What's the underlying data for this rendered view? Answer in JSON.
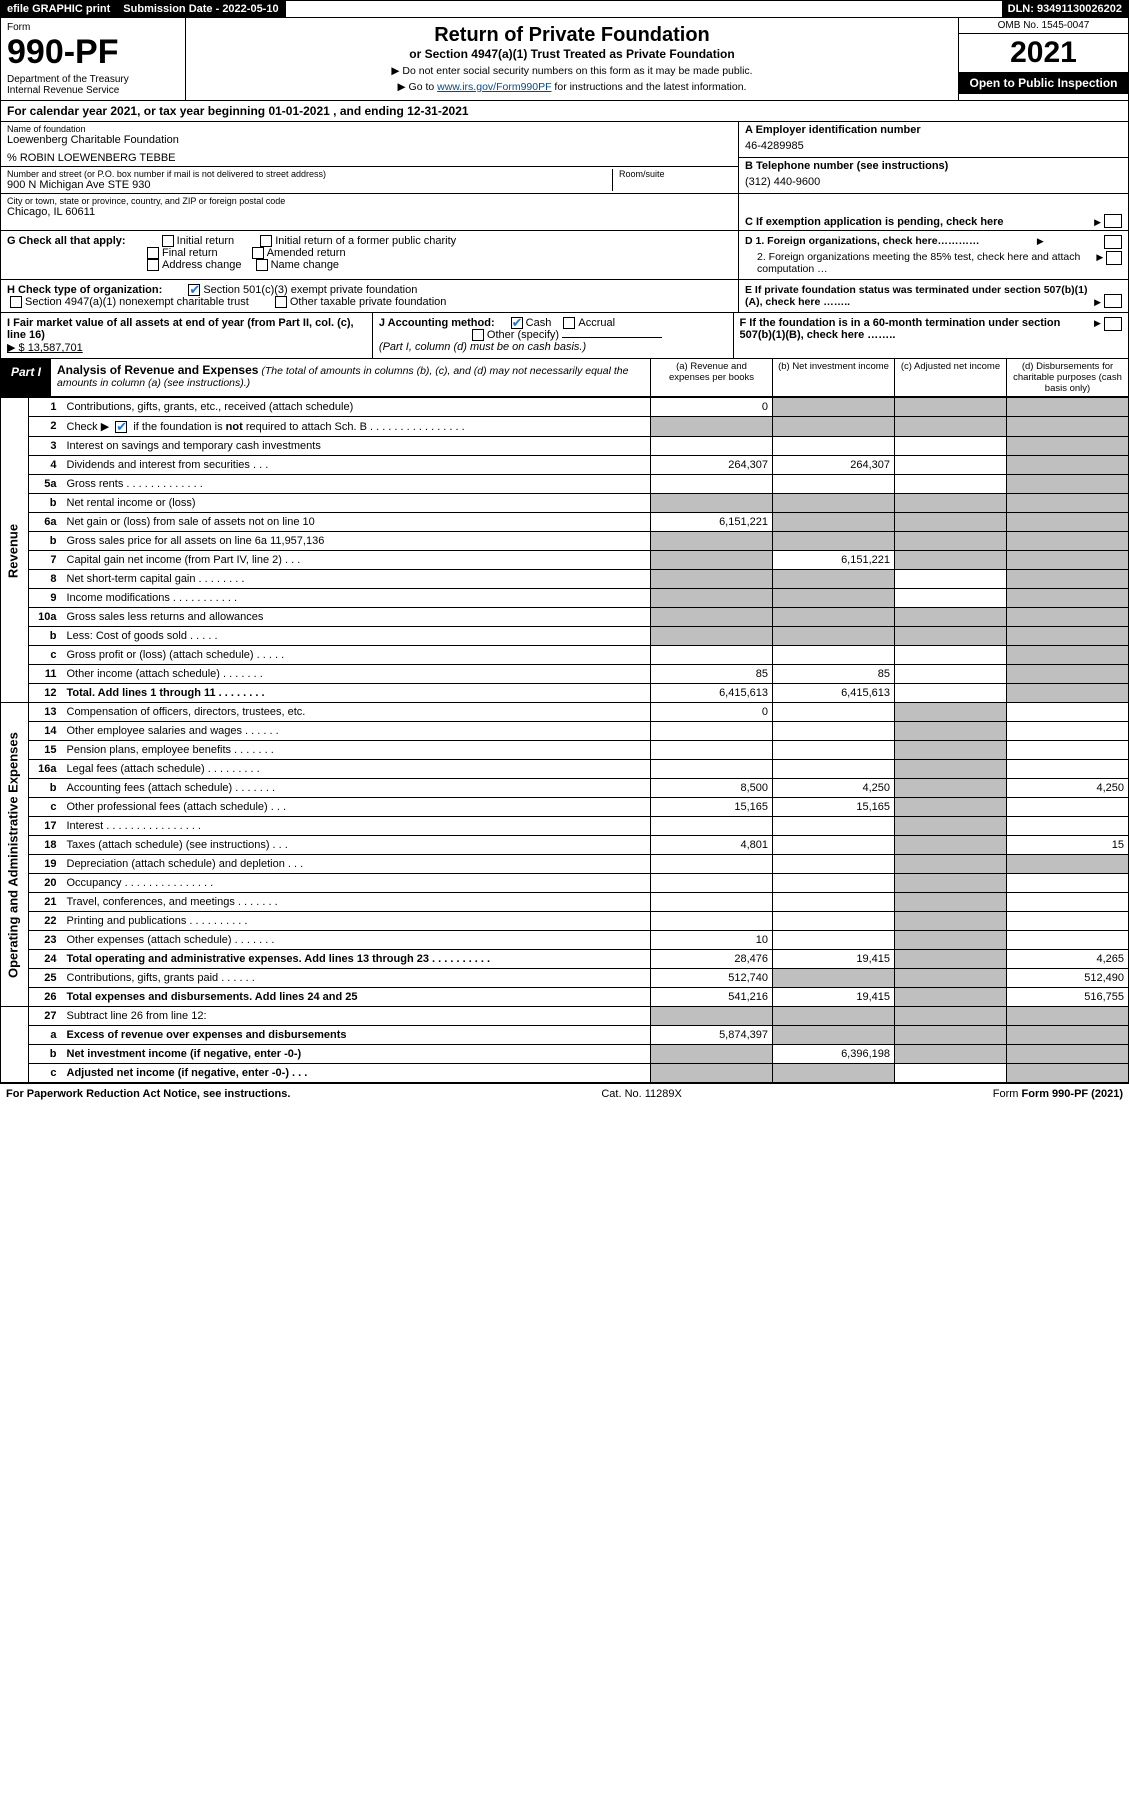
{
  "topbar": {
    "efile": "efile GRAPHIC print",
    "sub_label": "Submission Date - 2022-05-10",
    "dln": "DLN: 93491130026202"
  },
  "header": {
    "form_word": "Form",
    "form_num": "990-PF",
    "dept": "Department of the Treasury\nInternal Revenue Service",
    "title": "Return of Private Foundation",
    "subtitle": "or Section 4947(a)(1) Trust Treated as Private Foundation",
    "note1": "▶ Do not enter social security numbers on this form as it may be made public.",
    "note2_pre": "▶ Go to ",
    "note2_link": "www.irs.gov/Form990PF",
    "note2_post": " for instructions and the latest information.",
    "omb": "OMB No. 1545-0047",
    "year": "2021",
    "open": "Open to Public Inspection"
  },
  "yearline": "For calendar year 2021, or tax year beginning 01-01-2021                           , and ending 12-31-2021",
  "identity": {
    "name_lbl": "Name of foundation",
    "name": "Loewenberg Charitable Foundation",
    "co": "% ROBIN LOEWENBERG TEBBE",
    "addr_lbl": "Number and street (or P.O. box number if mail is not delivered to street address)",
    "addr": "900 N Michigan Ave STE 930",
    "room_lbl": "Room/suite",
    "city_lbl": "City or town, state or province, country, and ZIP or foreign postal code",
    "city": "Chicago, IL  60611",
    "a_lbl": "A Employer identification number",
    "a_val": "46-4289985",
    "b_lbl": "B Telephone number (see instructions)",
    "b_val": "(312) 440-9600",
    "c_lbl": "C If exemption application is pending, check here"
  },
  "g": {
    "lbl": "G Check all that apply:",
    "opts": [
      "Initial return",
      "Initial return of a former public charity",
      "Final return",
      "Amended return",
      "Address change",
      "Name change"
    ]
  },
  "h": {
    "lbl": "H Check type of organization:",
    "o1": "Section 501(c)(3) exempt private foundation",
    "o2": "Section 4947(a)(1) nonexempt charitable trust",
    "o3": "Other taxable private foundation"
  },
  "d": {
    "d1": "D 1. Foreign organizations, check here…………",
    "d2": "2. Foreign organizations meeting the 85% test, check here and attach computation …"
  },
  "e": "E  If private foundation status was terminated under section 507(b)(1)(A), check here ……..",
  "i": {
    "lbl": "I Fair market value of all assets at end of year (from Part II, col. (c), line 16)",
    "val": "▶ $  13,587,701"
  },
  "j": {
    "lbl": "J Accounting method:",
    "cash": "Cash",
    "accrual": "Accrual",
    "other": "Other (specify)",
    "note": "(Part I, column (d) must be on cash basis.)"
  },
  "f": "F  If the foundation is in a 60-month termination under section 507(b)(1)(B), check here ……..",
  "part1": {
    "tag": "Part I",
    "title": "Analysis of Revenue and Expenses",
    "paren": "(The total of amounts in columns (b), (c), and (d) may not necessarily equal the amounts in column (a) (see instructions).)",
    "col_a": "(a)   Revenue and expenses per books",
    "col_b": "(b)   Net investment income",
    "col_c": "(c)   Adjusted net income",
    "col_d": "(d)  Disbursements for charitable purposes (cash basis only)"
  },
  "side": {
    "rev": "Revenue",
    "exp": "Operating and Administrative Expenses"
  },
  "rows": {
    "r1": {
      "ln": "1",
      "desc": "Contributions, gifts, grants, etc., received (attach schedule)",
      "a": "0"
    },
    "r2": {
      "ln": "2",
      "desc": "Check ▶        if the foundation is not required to attach Sch. B     .   .   .   .   .   .   .   .   .   .   .   .   .   .   .   ."
    },
    "r3": {
      "ln": "3",
      "desc": "Interest on savings and temporary cash investments"
    },
    "r4": {
      "ln": "4",
      "desc": "Dividends and interest from securities      .    .    .",
      "a": "264,307",
      "b": "264,307"
    },
    "r5a": {
      "ln": "5a",
      "desc": "Gross rents      .   .   .   .   .   .   .   .   .   .   .   .   ."
    },
    "r5b": {
      "ln": "b",
      "desc": "Net rental income or (loss)"
    },
    "r6a": {
      "ln": "6a",
      "desc": "Net gain or (loss) from sale of assets not on line 10",
      "a": "6,151,221"
    },
    "r6b": {
      "ln": "b",
      "desc": "Gross sales price for all assets on line 6a          11,957,136"
    },
    "r7": {
      "ln": "7",
      "desc": "Capital gain net income (from Part IV, line 2)    .   .   .",
      "b": "6,151,221"
    },
    "r8": {
      "ln": "8",
      "desc": "Net short-term capital gain   .   .   .   .   .   .   .   ."
    },
    "r9": {
      "ln": "9",
      "desc": "Income modifications .   .   .   .   .   .   .   .   .   .   ."
    },
    "r10a": {
      "ln": "10a",
      "desc": "Gross sales less returns and allowances"
    },
    "r10b": {
      "ln": "b",
      "desc": "Less: Cost of goods sold      .   .   .   .   ."
    },
    "r10c": {
      "ln": "c",
      "desc": "Gross profit or (loss) (attach schedule)      .   .   .   .   ."
    },
    "r11": {
      "ln": "11",
      "desc": "Other income (attach schedule)    .   .   .   .   .   .   .",
      "a": "85",
      "b": "85"
    },
    "r12": {
      "ln": "12",
      "desc": "Total. Add lines 1 through 11    .   .   .   .   .   .   .   .",
      "a": "6,415,613",
      "b": "6,415,613",
      "bold": true
    },
    "r13": {
      "ln": "13",
      "desc": "Compensation of officers, directors, trustees, etc.",
      "a": "0"
    },
    "r14": {
      "ln": "14",
      "desc": "Other employee salaries and wages    .   .   .   .   .   ."
    },
    "r15": {
      "ln": "15",
      "desc": "Pension plans, employee benefits  .   .   .   .   .   .   ."
    },
    "r16a": {
      "ln": "16a",
      "desc": "Legal fees (attach schedule) .   .   .   .   .   .   .   .   ."
    },
    "r16b": {
      "ln": "b",
      "desc": "Accounting fees (attach schedule) .   .   .   .   .   .   .",
      "a": "8,500",
      "b": "4,250",
      "d": "4,250"
    },
    "r16c": {
      "ln": "c",
      "desc": "Other professional fees (attach schedule)     .   .   .",
      "a": "15,165",
      "b": "15,165"
    },
    "r17": {
      "ln": "17",
      "desc": "Interest  .   .   .   .   .   .   .   .   .   .   .   .   .   .   .   ."
    },
    "r18": {
      "ln": "18",
      "desc": "Taxes (attach schedule) (see instructions)      .   .   .",
      "a": "4,801",
      "d": "15"
    },
    "r19": {
      "ln": "19",
      "desc": "Depreciation (attach schedule) and depletion    .   .   ."
    },
    "r20": {
      "ln": "20",
      "desc": "Occupancy .   .   .   .   .   .   .   .   .   .   .   .   .   .   ."
    },
    "r21": {
      "ln": "21",
      "desc": "Travel, conferences, and meetings .   .   .   .   .   .   ."
    },
    "r22": {
      "ln": "22",
      "desc": "Printing and publications .   .   .   .   .   .   .   .   .   ."
    },
    "r23": {
      "ln": "23",
      "desc": "Other expenses (attach schedule) .   .   .   .   .   .   .",
      "a": "10"
    },
    "r24": {
      "ln": "24",
      "desc": "Total operating and administrative expenses. Add lines 13 through 23    .   .   .   .   .   .   .   .   .   .",
      "a": "28,476",
      "b": "19,415",
      "d": "4,265",
      "bold": true
    },
    "r25": {
      "ln": "25",
      "desc": "Contributions, gifts, grants paid      .   .   .   .   .   .",
      "a": "512,740",
      "d": "512,490"
    },
    "r26": {
      "ln": "26",
      "desc": "Total expenses and disbursements. Add lines 24 and 25",
      "a": "541,216",
      "b": "19,415",
      "d": "516,755",
      "bold": true
    },
    "r27": {
      "ln": "27",
      "desc": "Subtract line 26 from line 12:"
    },
    "r27a": {
      "ln": "a",
      "desc": "Excess of revenue over expenses and disbursements",
      "a": "5,874,397",
      "bold": true
    },
    "r27b": {
      "ln": "b",
      "desc": "Net investment income (if negative, enter -0-)",
      "b": "6,396,198",
      "bold": true
    },
    "r27c": {
      "ln": "c",
      "desc": "Adjusted net income (if negative, enter -0-)    .   .   .",
      "bold": true
    }
  },
  "footer": {
    "left": "For Paperwork Reduction Act Notice, see instructions.",
    "mid": "Cat. No. 11289X",
    "right": "Form 990-PF (2021)"
  },
  "colors": {
    "link": "#004b8d",
    "check": "#1976d2",
    "grey": "#bfbfbf"
  }
}
